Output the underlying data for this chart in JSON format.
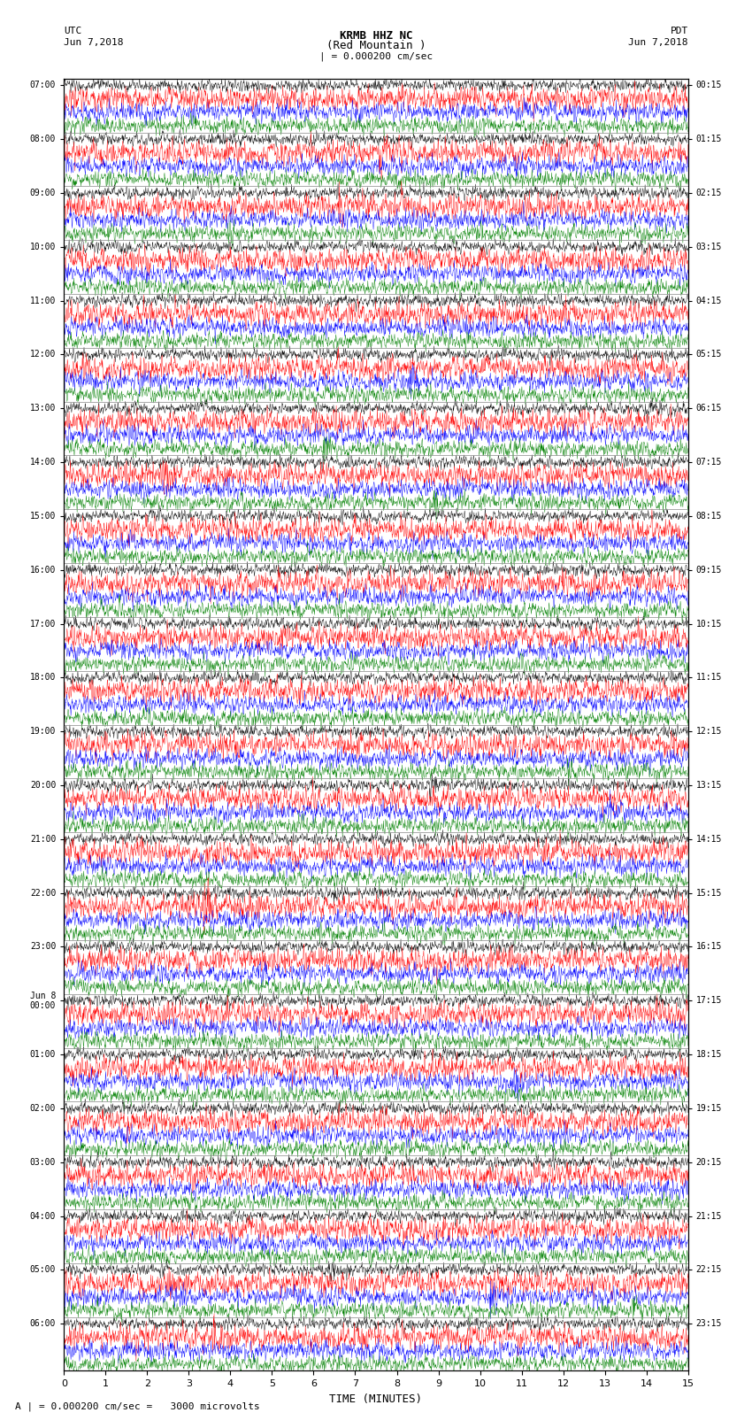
{
  "title_line1": "KRMB HHZ NC",
  "title_line2": "(Red Mountain )",
  "scale_label": "| = 0.000200 cm/sec",
  "bottom_label": "A | = 0.000200 cm/sec =   3000 microvolts",
  "xlabel": "TIME (MINUTES)",
  "utc_label": "UTC",
  "utc_date": "Jun 7,2018",
  "pdt_label": "PDT",
  "pdt_date": "Jun 7,2018",
  "left_times": [
    "07:00",
    "08:00",
    "09:00",
    "10:00",
    "11:00",
    "12:00",
    "13:00",
    "14:00",
    "15:00",
    "16:00",
    "17:00",
    "18:00",
    "19:00",
    "20:00",
    "21:00",
    "22:00",
    "23:00",
    "Jun 8\n00:00",
    "01:00",
    "02:00",
    "03:00",
    "04:00",
    "05:00",
    "06:00"
  ],
  "right_times": [
    "00:15",
    "01:15",
    "02:15",
    "03:15",
    "04:15",
    "05:15",
    "06:15",
    "07:15",
    "08:15",
    "09:15",
    "10:15",
    "11:15",
    "12:15",
    "13:15",
    "14:15",
    "15:15",
    "16:15",
    "17:15",
    "18:15",
    "19:15",
    "20:15",
    "21:15",
    "22:15",
    "23:15"
  ],
  "colors": [
    "black",
    "red",
    "blue",
    "green"
  ],
  "n_groups": 24,
  "n_points": 1800,
  "x_min": 0,
  "x_max": 15,
  "fig_width": 8.5,
  "fig_height": 16.13,
  "dpi": 100,
  "background_color": "white",
  "trace_lw": 0.3,
  "trace_amplitude": 0.38,
  "separator_color": "#888888",
  "separator_lw": 0.5
}
